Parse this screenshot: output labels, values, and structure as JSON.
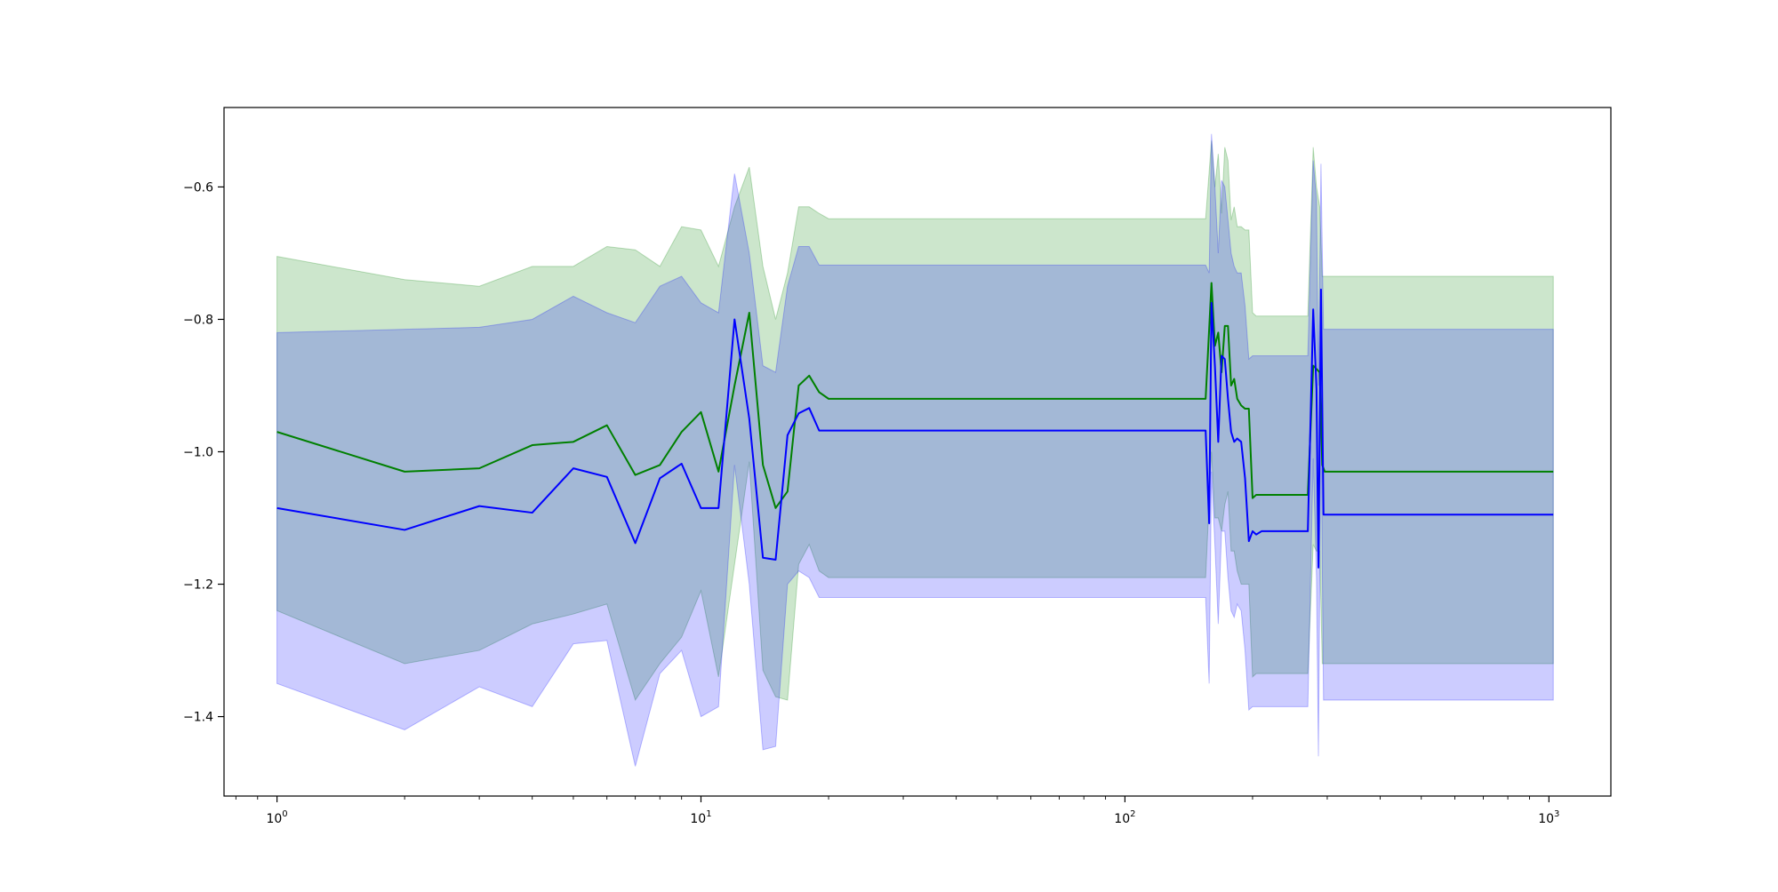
{
  "chart_data": {
    "type": "line",
    "title": "",
    "xlabel": "",
    "ylabel": "",
    "xscale": "log",
    "xlim": [
      0.75,
      1400
    ],
    "ylim": [
      -1.52,
      -0.48
    ],
    "x_ticks": [
      {
        "value": 1,
        "base": "10",
        "exp": "0"
      },
      {
        "value": 10,
        "base": "10",
        "exp": "1"
      },
      {
        "value": 100,
        "base": "10",
        "exp": "2"
      },
      {
        "value": 1000,
        "base": "10",
        "exp": "3"
      }
    ],
    "y_ticks": [
      {
        "value": -0.6,
        "label": "−0.6"
      },
      {
        "value": -0.8,
        "label": "−0.8"
      },
      {
        "value": -1.0,
        "label": "−1.0"
      },
      {
        "value": -1.2,
        "label": "−1.2"
      },
      {
        "value": -1.4,
        "label": "−1.4"
      }
    ],
    "grid": false,
    "colors": {
      "green_line": "#008000",
      "blue_line": "#0000ff",
      "green_band": "#008000",
      "blue_band": "#0000ff"
    },
    "series": [
      {
        "color_key": "green",
        "x": [
          1,
          2,
          3,
          4,
          5,
          6,
          7,
          8,
          9,
          10,
          11,
          12,
          13,
          14,
          15,
          16,
          17,
          18,
          19,
          20,
          155,
          160,
          163,
          166,
          169,
          172,
          175,
          178,
          181,
          184,
          188,
          192,
          196,
          200,
          204,
          210,
          230,
          270,
          278,
          283,
          288,
          292,
          296,
          300,
          1024
        ],
        "y": [
          -0.97,
          -1.03,
          -1.025,
          -0.99,
          -0.985,
          -0.96,
          -1.035,
          -1.02,
          -0.97,
          -0.94,
          -1.03,
          -0.9,
          -0.79,
          -1.02,
          -1.085,
          -1.06,
          -0.9,
          -0.885,
          -0.91,
          -0.92,
          -0.92,
          -0.745,
          -0.84,
          -0.82,
          -0.88,
          -0.81,
          -0.81,
          -0.9,
          -0.89,
          -0.92,
          -0.93,
          -0.935,
          -0.935,
          -1.07,
          -1.065,
          -1.065,
          -1.065,
          -1.065,
          -0.87,
          -0.875,
          -0.88,
          -1.02,
          -1.03,
          -1.03,
          -1.03
        ],
        "upper": [
          -0.705,
          -0.74,
          -0.75,
          -0.72,
          -0.72,
          -0.69,
          -0.695,
          -0.72,
          -0.66,
          -0.665,
          -0.72,
          -0.63,
          -0.57,
          -0.72,
          -0.8,
          -0.73,
          -0.63,
          -0.63,
          -0.64,
          -0.648,
          -0.648,
          -0.53,
          -0.6,
          -0.55,
          -0.64,
          -0.54,
          -0.56,
          -0.65,
          -0.63,
          -0.66,
          -0.66,
          -0.665,
          -0.665,
          -0.79,
          -0.795,
          -0.795,
          -0.795,
          -0.795,
          -0.54,
          -0.6,
          -0.63,
          -0.735,
          -0.735,
          -0.735,
          -0.735
        ],
        "lower": [
          -1.24,
          -1.32,
          -1.3,
          -1.26,
          -1.245,
          -1.23,
          -1.375,
          -1.32,
          -1.28,
          -1.21,
          -1.34,
          -1.17,
          -1.015,
          -1.33,
          -1.37,
          -1.375,
          -1.17,
          -1.14,
          -1.18,
          -1.19,
          -1.19,
          -1.0,
          -1.1,
          -1.1,
          -1.12,
          -1.08,
          -1.06,
          -1.15,
          -1.15,
          -1.18,
          -1.2,
          -1.2,
          -1.2,
          -1.34,
          -1.335,
          -1.335,
          -1.335,
          -1.335,
          -1.14,
          -1.15,
          -1.15,
          -1.32,
          -1.32,
          -1.32,
          -1.32
        ]
      },
      {
        "color_key": "blue",
        "x": [
          1,
          2,
          3,
          4,
          5,
          6,
          7,
          8,
          9,
          10,
          11,
          12,
          13,
          14,
          15,
          16,
          17,
          18,
          19,
          20,
          155,
          158,
          160,
          163,
          166,
          169,
          172,
          175,
          178,
          181,
          184,
          188,
          192,
          196,
          200,
          204,
          210,
          230,
          270,
          278,
          283,
          286,
          290,
          294,
          1024
        ],
        "y": [
          -1.085,
          -1.118,
          -1.082,
          -1.092,
          -1.025,
          -1.038,
          -1.138,
          -1.04,
          -1.018,
          -1.085,
          -1.085,
          -0.8,
          -0.95,
          -1.16,
          -1.163,
          -0.975,
          -0.942,
          -0.934,
          -0.968,
          -0.968,
          -0.968,
          -1.108,
          -0.775,
          -0.87,
          -0.985,
          -0.855,
          -0.86,
          -0.92,
          -0.97,
          -0.985,
          -0.98,
          -0.985,
          -1.04,
          -1.135,
          -1.12,
          -1.125,
          -1.12,
          -1.12,
          -1.12,
          -0.785,
          -0.905,
          -1.175,
          -0.755,
          -1.095,
          -1.095
        ],
        "upper": [
          -0.82,
          -0.815,
          -0.812,
          -0.8,
          -0.765,
          -0.79,
          -0.805,
          -0.75,
          -0.735,
          -0.775,
          -0.79,
          -0.58,
          -0.7,
          -0.87,
          -0.88,
          -0.75,
          -0.69,
          -0.69,
          -0.718,
          -0.718,
          -0.718,
          -0.73,
          -0.52,
          -0.6,
          -0.7,
          -0.59,
          -0.6,
          -0.65,
          -0.7,
          -0.72,
          -0.73,
          -0.73,
          -0.78,
          -0.86,
          -0.855,
          -0.855,
          -0.855,
          -0.855,
          -0.855,
          -0.56,
          -0.62,
          -0.9,
          -0.565,
          -0.815,
          -0.815
        ],
        "lower": [
          -1.35,
          -1.42,
          -1.355,
          -1.385,
          -1.29,
          -1.285,
          -1.475,
          -1.335,
          -1.3,
          -1.4,
          -1.385,
          -1.02,
          -1.2,
          -1.45,
          -1.445,
          -1.2,
          -1.18,
          -1.19,
          -1.22,
          -1.22,
          -1.22,
          -1.35,
          -1.03,
          -1.14,
          -1.26,
          -1.12,
          -1.12,
          -1.19,
          -1.24,
          -1.25,
          -1.23,
          -1.24,
          -1.3,
          -1.39,
          -1.385,
          -1.385,
          -1.385,
          -1.385,
          -1.385,
          -1.01,
          -1.19,
          -1.46,
          -0.95,
          -1.375,
          -1.375
        ]
      }
    ]
  }
}
